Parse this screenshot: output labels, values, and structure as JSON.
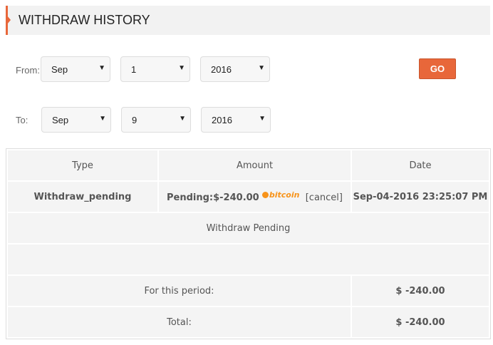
{
  "title": "WITHDRAW HISTORY",
  "filter": {
    "from_label": "From:",
    "to_label": "To:",
    "from": {
      "month": "Sep",
      "day": "1",
      "year": "2016"
    },
    "to": {
      "month": "Sep",
      "day": "9",
      "year": "2016"
    },
    "go_label": "GO"
  },
  "table": {
    "headers": [
      "Type",
      "Amount",
      "Date"
    ],
    "row": {
      "type": "Withdraw_pending",
      "amount": "Pending:$-240.00",
      "currency": "bitcoin",
      "cancel": "[cancel]",
      "date": "Sep-04-2016 23:25:07 PM"
    },
    "status": "Withdraw Pending",
    "period_label": "For this period:",
    "period_value": "$ -240.00",
    "total_label": "Total:",
    "total_value": "$ -240.00"
  },
  "colors": {
    "accent": "#e8673a",
    "bitcoin": "#f7931a"
  }
}
